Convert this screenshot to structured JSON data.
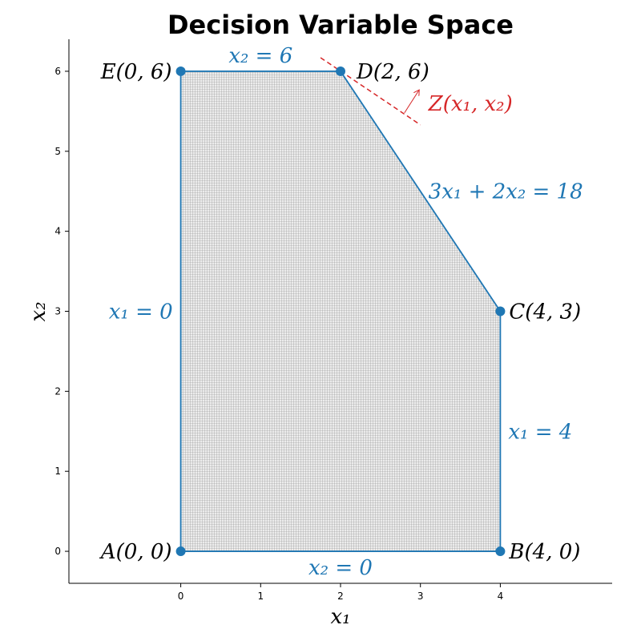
{
  "chart_data": {
    "type": "scatter",
    "title": "Decision Variable Space",
    "xlabel": "x₁",
    "ylabel": "x₂",
    "xlim": [
      -1.4,
      5.4
    ],
    "ylim": [
      -0.4,
      6.4
    ],
    "x_ticks": [
      0,
      1,
      2,
      3,
      4
    ],
    "y_ticks": [
      0,
      1,
      2,
      3,
      4,
      5,
      6
    ],
    "x_tick_labels": [
      "0",
      "1",
      "2",
      "3",
      "4"
    ],
    "y_tick_labels": [
      "0",
      "1",
      "2",
      "3",
      "4",
      "5",
      "6"
    ],
    "grid": false,
    "colors": {
      "region_edge": "#1f77b4",
      "region_fill": "#e6e6e6",
      "hatch": "#8c8c8c",
      "objective": "#d62728"
    },
    "feasible_region": [
      [
        0,
        0
      ],
      [
        4,
        0
      ],
      [
        4,
        3
      ],
      [
        2,
        6
      ],
      [
        0,
        6
      ]
    ],
    "vertices": [
      {
        "name": "A",
        "x": 0,
        "y": 0,
        "label": "A(0, 0)"
      },
      {
        "name": "B",
        "x": 4,
        "y": 0,
        "label": "B(4, 0)"
      },
      {
        "name": "C",
        "x": 4,
        "y": 3,
        "label": "C(4, 3)"
      },
      {
        "name": "D",
        "x": 2,
        "y": 6,
        "label": "D(2, 6)"
      },
      {
        "name": "E",
        "x": 0,
        "y": 6,
        "label": "E(0, 6)"
      }
    ],
    "constraints": [
      {
        "id": "x2-eq-0",
        "label": "x₂ = 0",
        "x": 2,
        "y": -0.2
      },
      {
        "id": "x1-eq-4",
        "label": "x₁ = 4",
        "x": 4.1,
        "y": 1.5
      },
      {
        "id": "c3",
        "label": "3x₁ + 2x₂ = 18",
        "x": 3.1,
        "y": 4.5
      },
      {
        "id": "x2-eq-6",
        "label": "x₂ = 6",
        "x": 1,
        "y": 6.2
      },
      {
        "id": "x1-eq-0",
        "label": "x₁ = 0",
        "x": -0.5,
        "y": 3
      }
    ],
    "objective": {
      "label": "Z(x₁, x₂)",
      "label_x": 3.1,
      "label_y": 5.6,
      "line": [
        [
          1.75,
          6.17
        ],
        [
          3.0,
          5.33
        ]
      ],
      "arrow": [
        [
          2.8,
          5.48
        ],
        [
          2.98,
          5.76
        ]
      ]
    }
  }
}
